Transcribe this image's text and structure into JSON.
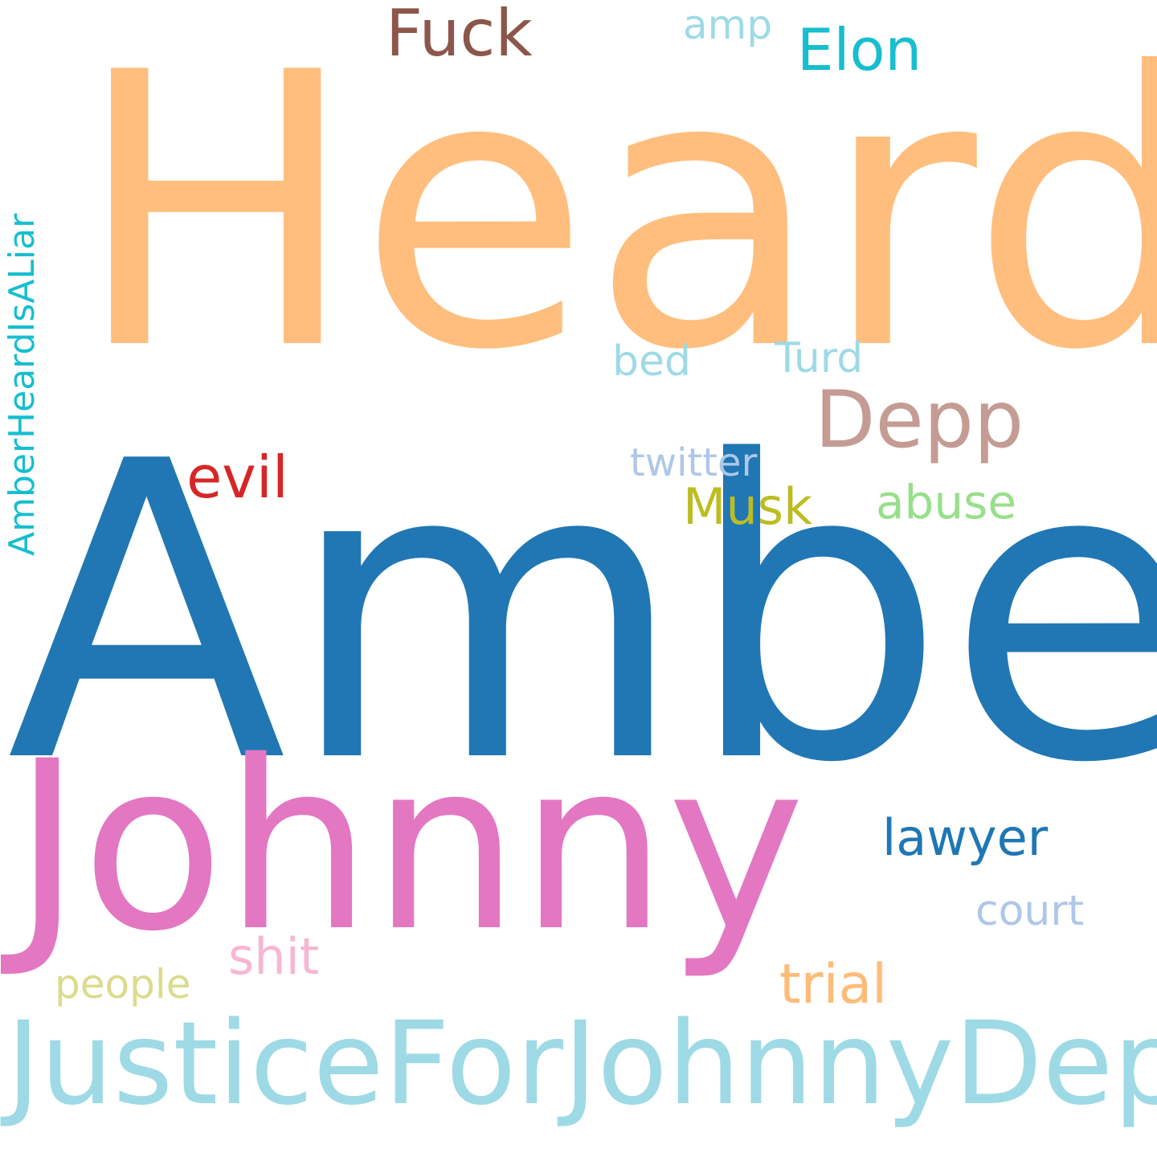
{
  "word_cloud": {
    "background": "#ffffff",
    "words": [
      {
        "key": "heard",
        "text": "Heard",
        "color": "#ffbe7d"
      },
      {
        "key": "amber",
        "text": "Amber",
        "color": "#2077b4"
      },
      {
        "key": "johnny",
        "text": "Johnny",
        "color": "#e377c2"
      },
      {
        "key": "justice",
        "text": "JusticeForJohnnyDepp",
        "color": "#9edae5"
      },
      {
        "key": "fuck",
        "text": "Fuck",
        "color": "#8c564b"
      },
      {
        "key": "amp",
        "text": "amp",
        "color": "#9edae5"
      },
      {
        "key": "elon",
        "text": "Elon",
        "color": "#17becf"
      },
      {
        "key": "bed",
        "text": "bed",
        "color": "#9edae5"
      },
      {
        "key": "turd",
        "text": "Turd",
        "color": "#9edae5"
      },
      {
        "key": "depp",
        "text": "Depp",
        "color": "#c49c94"
      },
      {
        "key": "evil",
        "text": "evil",
        "color": "#d62728"
      },
      {
        "key": "twitter",
        "text": "twitter",
        "color": "#aec7e8"
      },
      {
        "key": "musk",
        "text": "Musk",
        "color": "#bcbd22"
      },
      {
        "key": "abuse",
        "text": "abuse",
        "color": "#98df8a"
      },
      {
        "key": "lawyer",
        "text": "lawyer",
        "color": "#1f77b4"
      },
      {
        "key": "court",
        "text": "court",
        "color": "#aec7e8"
      },
      {
        "key": "shit",
        "text": "shit",
        "color": "#f7b6d2"
      },
      {
        "key": "people",
        "text": "people",
        "color": "#dbdb8d"
      },
      {
        "key": "trial",
        "text": "trial",
        "color": "#ffbb78"
      },
      {
        "key": "liar",
        "text": "AmberHeardIsALiar",
        "color": "#17becf"
      }
    ]
  }
}
